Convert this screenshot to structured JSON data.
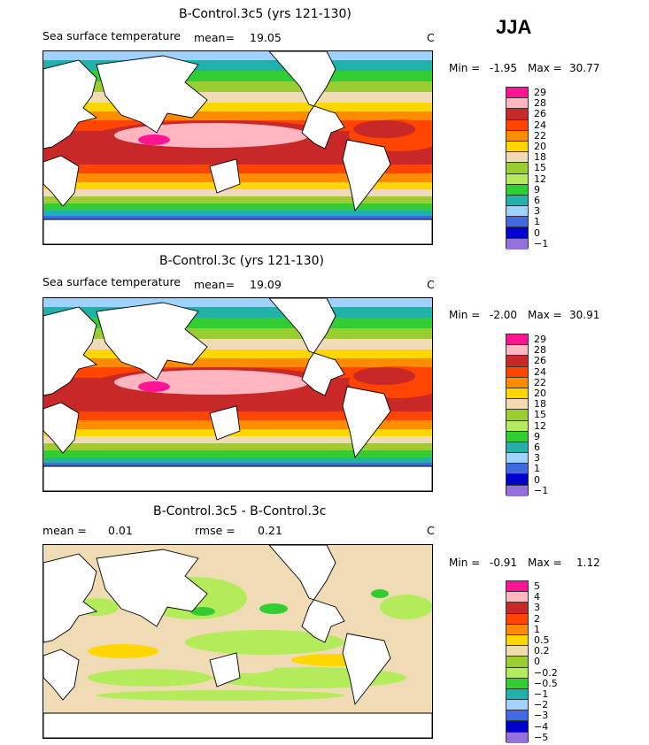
{
  "season": "JJA",
  "panels": [
    {
      "title": "B-Control.3c5 (yrs 121-130)",
      "variable": "Sea surface temperature",
      "mean_label": "mean=",
      "mean_value": "19.05",
      "units": "C",
      "min_label": "Min =",
      "min_value": "-1.95",
      "max_label": "Max =",
      "max_value": "30.77",
      "levels": [
        "29",
        "28",
        "26",
        "24",
        "22",
        "20",
        "18",
        "15",
        "12",
        "9",
        "6",
        "3",
        "1",
        "0",
        "-1"
      ],
      "colors": [
        "#ff1493",
        "#ffb6c1",
        "#c82828",
        "#ff4500",
        "#ff8c00",
        "#ffd700",
        "#f0dcb4",
        "#9acd32",
        "#b4eb5a",
        "#32cd32",
        "#20b2aa",
        "#a0d2ff",
        "#4169e1",
        "#0000cd",
        "#9370db"
      ],
      "pattern": "sst"
    },
    {
      "title": "B-Control.3c (yrs 121-130)",
      "variable": "Sea surface temperature",
      "mean_label": "mean=",
      "mean_value": "19.09",
      "units": "C",
      "min_label": "Min =",
      "min_value": "-2.00",
      "max_label": "Max =",
      "max_value": "30.91",
      "levels": [
        "29",
        "28",
        "26",
        "24",
        "22",
        "20",
        "18",
        "15",
        "12",
        "9",
        "6",
        "3",
        "1",
        "0",
        "-1"
      ],
      "colors": [
        "#ff1493",
        "#ffb6c1",
        "#c82828",
        "#ff4500",
        "#ff8c00",
        "#ffd700",
        "#f0dcb4",
        "#9acd32",
        "#b4eb5a",
        "#32cd32",
        "#20b2aa",
        "#a0d2ff",
        "#4169e1",
        "#0000cd",
        "#9370db"
      ],
      "pattern": "sst"
    },
    {
      "title": "B-Control.3c5 - B-Control.3c",
      "mean_label": "mean =",
      "mean_value": "0.01",
      "rmse_label": "rmse =",
      "rmse_value": "0.21",
      "units": "C",
      "min_label": "Min =",
      "min_value": "-0.91",
      "max_label": "Max =",
      "max_value": "1.12",
      "levels": [
        "5",
        "4",
        "3",
        "2",
        "1",
        "0.5",
        "0.2",
        "0",
        "-0.2",
        "-0.5",
        "-1",
        "-2",
        "-3",
        "-4",
        "-5"
      ],
      "colors": [
        "#ff1493",
        "#ffb6c1",
        "#c82828",
        "#ff4500",
        "#ff8c00",
        "#ffd700",
        "#f0dcb4",
        "#9acd32",
        "#b4eb5a",
        "#32cd32",
        "#20b2aa",
        "#a0d2ff",
        "#4169e1",
        "#0000cd",
        "#9370db"
      ],
      "pattern": "diff"
    }
  ]
}
